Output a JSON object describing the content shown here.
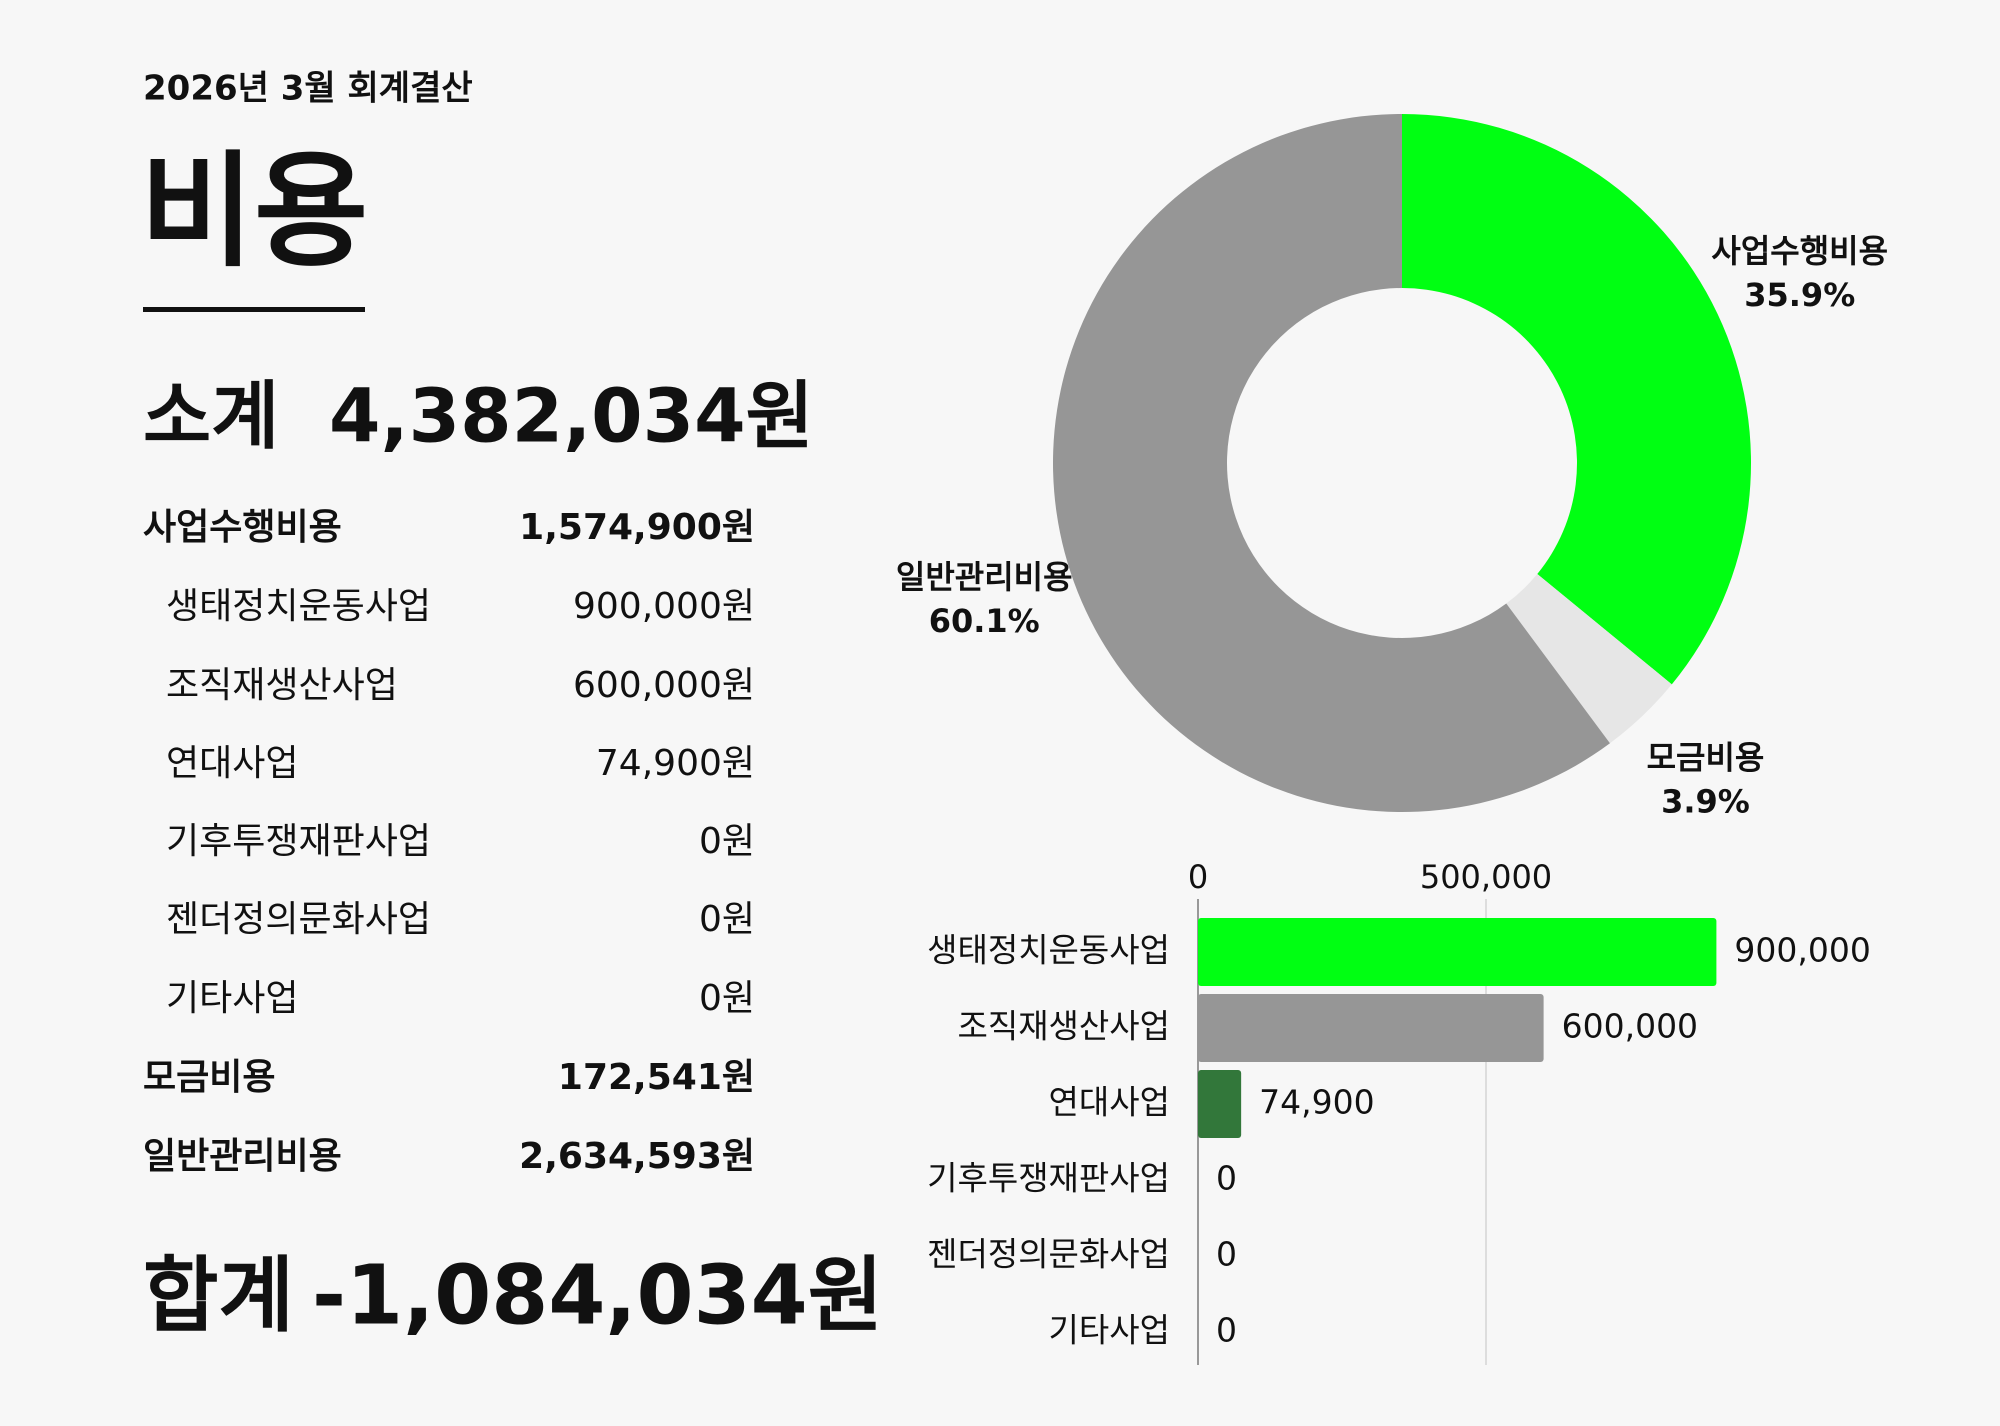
{
  "header": {
    "subtitle": "2026년 3월 회계결산",
    "title": "비용"
  },
  "subtotal": {
    "label": "소계",
    "value": "4,382,034원"
  },
  "table": {
    "rows": [
      [
        "사업수행비용",
        "1,574,900원"
      ],
      [
        "생태정치운동사업",
        "900,000원"
      ],
      [
        "조직재생산사업",
        "600,000원"
      ],
      [
        "연대사업",
        "74,900원"
      ],
      [
        "기후투쟁재판사업",
        "0원"
      ],
      [
        "젠더정의문화사업",
        "0원"
      ],
      [
        "기타사업",
        "0원"
      ],
      [
        "모금비용",
        "172,541원"
      ],
      [
        "일반관리비용",
        "2,634,593원"
      ]
    ]
  },
  "total": {
    "label": "합계",
    "value": "-1,084,034원"
  },
  "chart_data": [
    {
      "type": "donut",
      "categories": [
        "사업수행비용",
        "모금비용",
        "일반관리비용"
      ],
      "values": [
        35.9,
        3.9,
        60.1
      ],
      "value_labels": [
        "35.9%",
        "3.9%",
        "60.1%"
      ],
      "colors": [
        "#00ff12",
        "#e6e6e6",
        "#969696"
      ]
    },
    {
      "type": "hbar",
      "categories": [
        "생태정치운동사업",
        "조직재생산사업",
        "연대사업",
        "기후투쟁재판사업",
        "젠더정의문화사업",
        "기타사업"
      ],
      "values": [
        900000,
        600000,
        74900,
        0,
        0,
        0
      ],
      "value_labels": [
        "900,000",
        "600,000",
        "74,900",
        "0",
        "0",
        "0"
      ],
      "colors": [
        "#00ff12",
        "#969696",
        "#32773a",
        "#969696",
        "#969696",
        "#969696"
      ],
      "xlim": [
        0,
        1000000
      ],
      "xticks": [
        0,
        {
          "value": 500000,
          "label": "500,000"
        }
      ],
      "grid": true
    }
  ]
}
